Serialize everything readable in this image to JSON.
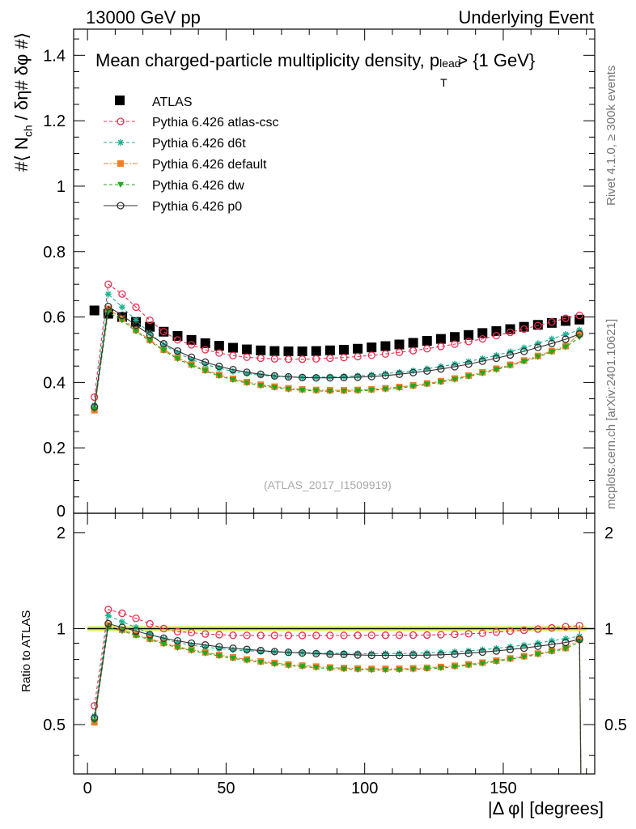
{
  "header": {
    "left": "13000 GeV pp",
    "right": "Underlying Event"
  },
  "side_labels": {
    "rivet": "Rivet 4.1.0, ≥ 300k events",
    "mcplots": "mcplots.cern.ch [arXiv:2401.10621]"
  },
  "chart_data": {
    "type": "line",
    "title": "Mean charged-particle multiplicity density, p_T^lead > {1 GeV}",
    "title_main": "Mean charged-particle multiplicity density, p",
    "title_sup": "lead",
    "title_sub": "T",
    "title_tail": " > {1 GeV}",
    "ylabel": "#⟨ N_ch / δη# δφ #⟩",
    "ylabel_main": "#⟨ N",
    "ylabel_sub": "ch",
    "ylabel_tail": " / δη# δφ #⟩",
    "ratio_ylabel": "Ratio to ATLAS",
    "xlabel": "|Δ φ| [degrees]",
    "watermark": "(ATLAS_2017_I1509919)",
    "xlim": [
      -5,
      183
    ],
    "ylim": [
      0,
      1.48
    ],
    "ratio_ylim": [
      0.35,
      2.3
    ],
    "x_ticks": [
      0,
      50,
      100,
      150
    ],
    "y_ticks": [
      0,
      0.2,
      0.4,
      0.6,
      0.8,
      1,
      1.2,
      1.4
    ],
    "y_tick_labels": [
      "0",
      "0.2",
      "0.4",
      "0.6",
      "0.8",
      "1",
      "1.2",
      "1.4"
    ],
    "ratio_ticks": [
      0.5,
      1,
      2
    ],
    "ratio_tick_labels": [
      "0.5",
      "1",
      "2"
    ],
    "x_bin_centers_note": "36 bins of width 5 degrees, centers 2.5 ... 177.5",
    "x_start": 2.5,
    "x_step": 5,
    "n_bins": 36,
    "data": {
      "name": "ATLAS",
      "color": "#000000",
      "values": [
        0.62,
        0.61,
        0.6,
        0.585,
        0.57,
        0.555,
        0.542,
        0.53,
        0.52,
        0.512,
        0.506,
        0.501,
        0.498,
        0.496,
        0.495,
        0.495,
        0.496,
        0.498,
        0.5,
        0.503,
        0.507,
        0.511,
        0.516,
        0.521,
        0.527,
        0.533,
        0.539,
        0.545,
        0.551,
        0.557,
        0.563,
        0.57,
        0.576,
        0.582,
        0.588,
        0.592
      ]
    },
    "series": [
      {
        "name": "Pythia 6.426 atlas-csc",
        "color": "#e8304f",
        "dash": "4,3",
        "marker": "open-circle",
        "values": [
          0.355,
          0.7,
          0.67,
          0.63,
          0.59,
          0.555,
          0.53,
          0.515,
          0.5,
          0.49,
          0.482,
          0.477,
          0.474,
          0.472,
          0.471,
          0.471,
          0.472,
          0.474,
          0.476,
          0.479,
          0.483,
          0.487,
          0.492,
          0.497,
          0.503,
          0.51,
          0.517,
          0.525,
          0.533,
          0.543,
          0.553,
          0.563,
          0.574,
          0.585,
          0.596,
          0.605
        ]
      },
      {
        "name": "Pythia 6.426 d6t",
        "color": "#1ab394",
        "dash": "4,3",
        "marker": "star",
        "values": [
          0.33,
          0.67,
          0.63,
          0.59,
          0.55,
          0.515,
          0.49,
          0.47,
          0.455,
          0.443,
          0.434,
          0.427,
          0.422,
          0.419,
          0.417,
          0.416,
          0.416,
          0.417,
          0.418,
          0.42,
          0.423,
          0.427,
          0.431,
          0.436,
          0.442,
          0.449,
          0.456,
          0.464,
          0.473,
          0.483,
          0.494,
          0.506,
          0.519,
          0.533,
          0.547,
          0.56
        ]
      },
      {
        "name": "Pythia 6.426 default",
        "color": "#f07f2a",
        "dash": "6,2,2,2",
        "marker": "square",
        "values": [
          0.315,
          0.625,
          0.595,
          0.56,
          0.53,
          0.5,
          0.476,
          0.455,
          0.438,
          0.423,
          0.411,
          0.401,
          0.393,
          0.387,
          0.382,
          0.379,
          0.377,
          0.376,
          0.376,
          0.377,
          0.379,
          0.382,
          0.386,
          0.391,
          0.397,
          0.404,
          0.412,
          0.421,
          0.431,
          0.442,
          0.454,
          0.467,
          0.481,
          0.496,
          0.511,
          0.548
        ]
      },
      {
        "name": "Pythia 6.426 dw",
        "color": "#22a81c",
        "dash": "4,3",
        "marker": "triangle-down",
        "values": [
          0.318,
          0.615,
          0.59,
          0.556,
          0.526,
          0.497,
          0.472,
          0.452,
          0.435,
          0.42,
          0.408,
          0.398,
          0.39,
          0.384,
          0.379,
          0.376,
          0.374,
          0.373,
          0.373,
          0.374,
          0.376,
          0.379,
          0.383,
          0.388,
          0.394,
          0.401,
          0.409,
          0.418,
          0.428,
          0.439,
          0.451,
          0.464,
          0.478,
          0.493,
          0.508,
          0.538
        ]
      },
      {
        "name": "Pythia 6.426 p0",
        "color": "#333333",
        "dash": "",
        "marker": "open-circle",
        "values": [
          0.325,
          0.632,
          0.605,
          0.575,
          0.545,
          0.518,
          0.496,
          0.477,
          0.462,
          0.449,
          0.439,
          0.431,
          0.425,
          0.42,
          0.417,
          0.415,
          0.414,
          0.414,
          0.415,
          0.416,
          0.418,
          0.421,
          0.425,
          0.43,
          0.435,
          0.441,
          0.448,
          0.456,
          0.465,
          0.474,
          0.484,
          0.495,
          0.507,
          0.519,
          0.532,
          0.548
        ]
      }
    ],
    "ratio_drop_x": 180,
    "legend_location": "top-left"
  }
}
